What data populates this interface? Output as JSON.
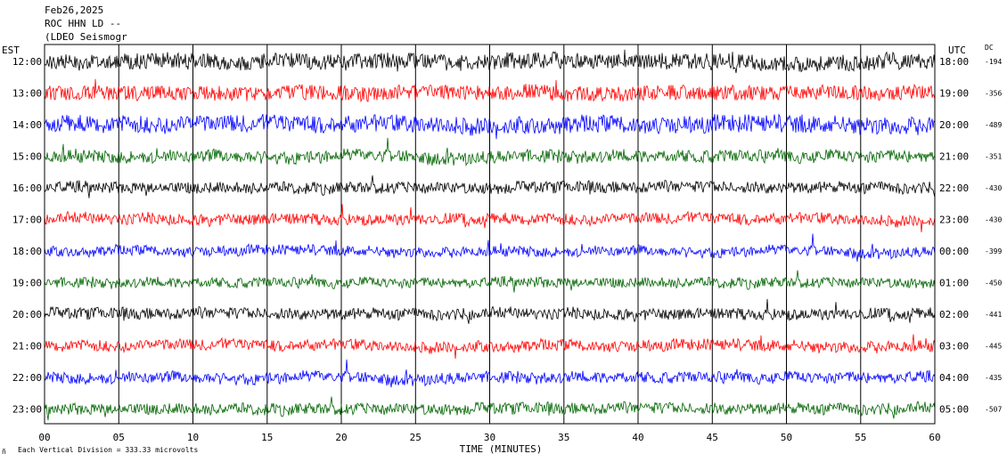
{
  "header": {
    "date": "Feb26,2025",
    "station": "ROC HHN LD --",
    "network": "(LDEO Seismogr"
  },
  "left_axis_title": "EST",
  "right_axis_title": "UTC",
  "dc_title": "DC",
  "footer": {
    "scale_note": "Each Vertical Division =  333.33 microvolts",
    "mark": "ñ"
  },
  "colors": {
    "trace_cycle": [
      "#000000",
      "#ff0000",
      "#0000ff",
      "#006400"
    ],
    "grid": "#000000"
  },
  "chart_data": {
    "type": "line",
    "title": "",
    "xlabel": "TIME (MINUTES)",
    "xlim": [
      0,
      60
    ],
    "x_ticks": [
      "00",
      "05",
      "10",
      "15",
      "20",
      "25",
      "30",
      "35",
      "40",
      "45",
      "50",
      "55",
      "60"
    ],
    "x_tick_values": [
      0,
      5,
      10,
      15,
      20,
      25,
      30,
      35,
      40,
      45,
      50,
      55,
      60
    ],
    "x_gridlines": [
      5,
      10,
      15,
      20,
      25,
      30,
      35,
      40,
      45,
      50,
      55
    ],
    "series": [
      {
        "est": "12:00",
        "utc": "18:00",
        "dc": "-194",
        "amplitude": 1.3
      },
      {
        "est": "13:00",
        "utc": "19:00",
        "dc": "-356",
        "amplitude": 1.2
      },
      {
        "est": "14:00",
        "utc": "20:00",
        "dc": "-489",
        "amplitude": 1.4
      },
      {
        "est": "15:00",
        "utc": "21:00",
        "dc": "-351",
        "amplitude": 1.0
      },
      {
        "est": "16:00",
        "utc": "22:00",
        "dc": "-430",
        "amplitude": 0.9
      },
      {
        "est": "17:00",
        "utc": "23:00",
        "dc": "-430",
        "amplitude": 0.9
      },
      {
        "est": "18:00",
        "utc": "00:00",
        "dc": "-399",
        "amplitude": 0.8
      },
      {
        "est": "19:00",
        "utc": "01:00",
        "dc": "-450",
        "amplitude": 0.8
      },
      {
        "est": "20:00",
        "utc": "02:00",
        "dc": "-441",
        "amplitude": 0.9
      },
      {
        "est": "21:00",
        "utc": "03:00",
        "dc": "-445",
        "amplitude": 0.9
      },
      {
        "est": "22:00",
        "utc": "04:00",
        "dc": "-435",
        "amplitude": 0.9
      },
      {
        "est": "23:00",
        "utc": "05:00",
        "dc": "-507",
        "amplitude": 0.9
      }
    ]
  }
}
